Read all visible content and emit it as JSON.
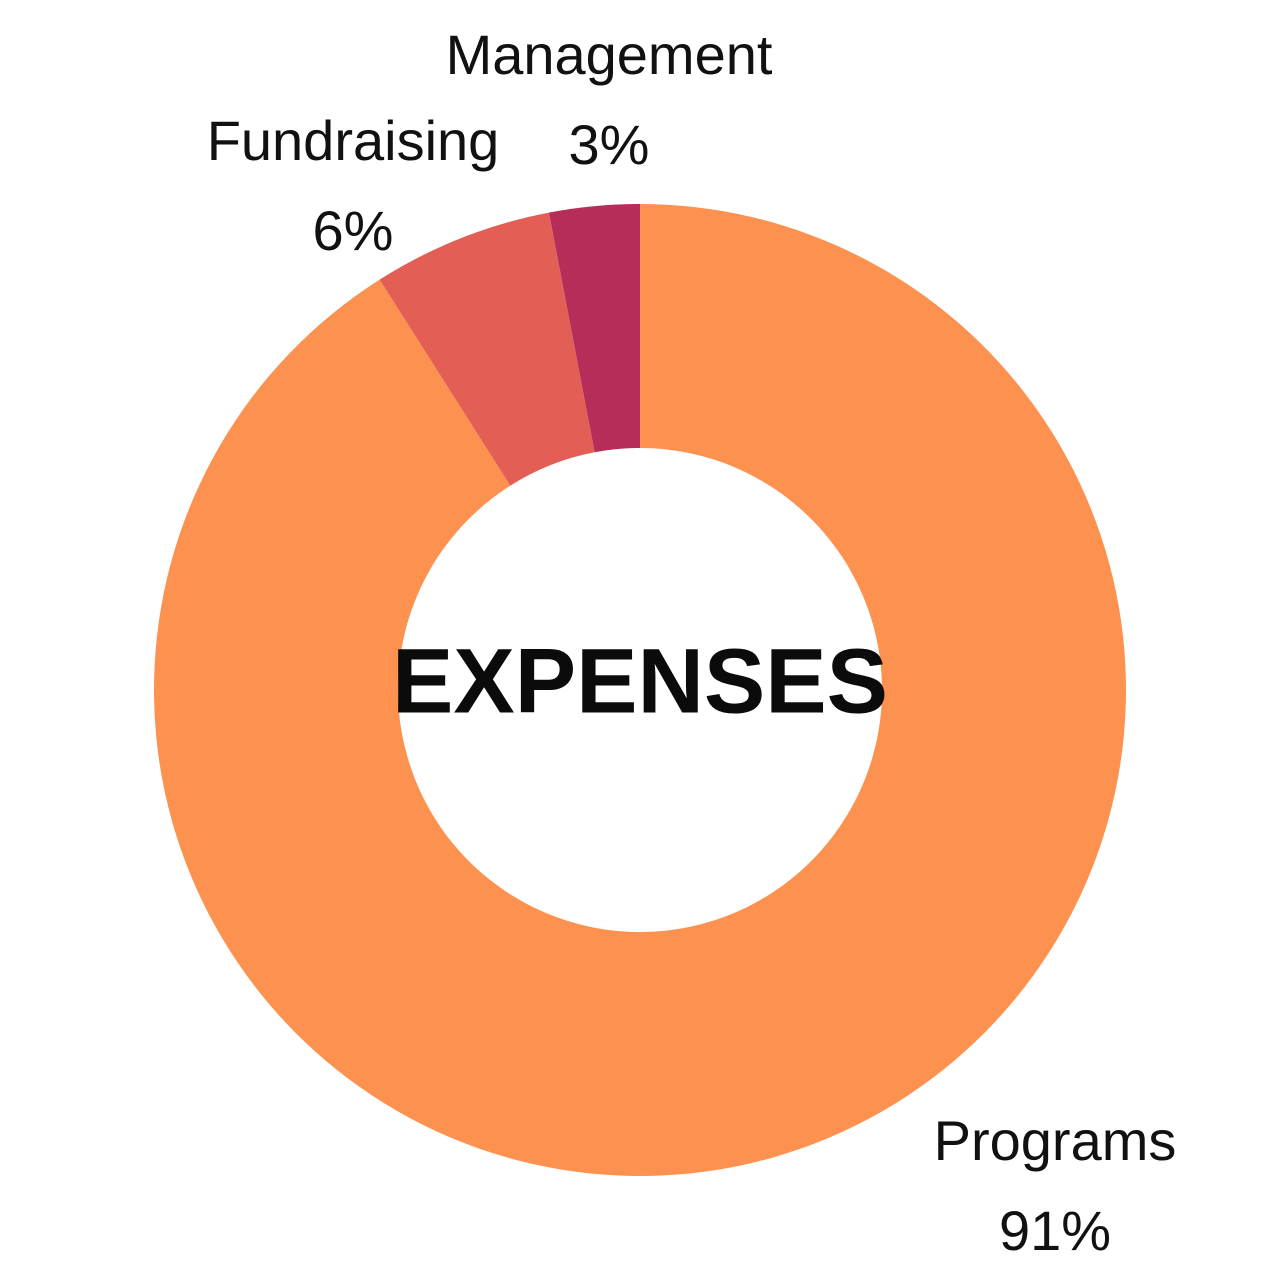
{
  "chart_data": {
    "type": "pie",
    "style": "donut",
    "title": "EXPENSES",
    "start_angle_deg": 0,
    "direction": "clockwise",
    "slices": [
      {
        "label": "Programs",
        "value": 91,
        "value_label": "91%",
        "color": "#FD914F"
      },
      {
        "label": "Fundraising",
        "value": 6,
        "value_label": "6%",
        "color": "#E35F56"
      },
      {
        "label": "Management",
        "value": 3,
        "value_label": "3%",
        "color": "#B72D59"
      }
    ]
  }
}
